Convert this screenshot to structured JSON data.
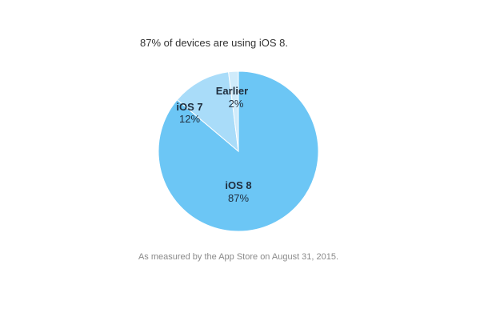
{
  "chart_data": {
    "type": "pie",
    "title": "87% of devices are using iOS 8.",
    "footnote": "As measured by the App Store on August 31, 2015.",
    "slices": [
      {
        "name": "iOS 8",
        "label": "87%",
        "value": 87,
        "color": "#6cc6f5"
      },
      {
        "name": "iOS 7",
        "label": "12%",
        "value": 12,
        "color": "#a9dcf9"
      },
      {
        "name": "Earlier",
        "label": "2%",
        "value": 2,
        "color": "#cfebfb"
      }
    ]
  }
}
